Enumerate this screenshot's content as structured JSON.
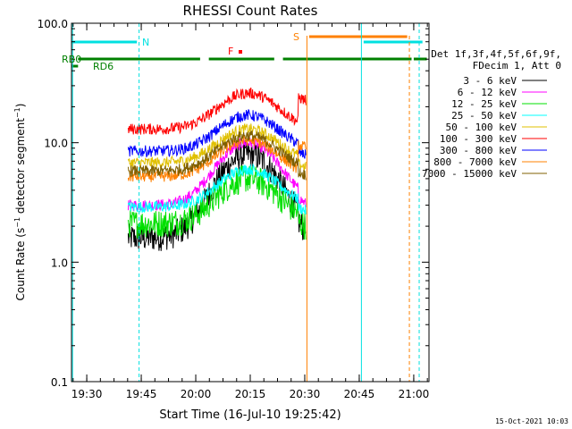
{
  "chart_data": {
    "type": "line",
    "title": "RHESSI Count Rates",
    "xlabel": "Start Time (16-Jul-10 19:25:42)",
    "ylabel_main": "Count Rate (s",
    "ylabel_sup": "−1",
    "ylabel_tail": " detector segment",
    "ylabel_sup2": "−1",
    "ylabel_end": ")",
    "y_scale": "log",
    "ylim": [
      0.1,
      100
    ],
    "xlim_minutes": [
      19.43,
      21.07
    ],
    "x_ticks": [
      {
        "label": "19:30",
        "value": 19.5
      },
      {
        "label": "19:45",
        "value": 19.75
      },
      {
        "label": "20:00",
        "value": 20.0
      },
      {
        "label": "20:15",
        "value": 20.25
      },
      {
        "label": "20:30",
        "value": 20.5
      },
      {
        "label": "20:45",
        "value": 20.75
      },
      {
        "label": "21:00",
        "value": 21.0
      }
    ],
    "y_ticks": [
      {
        "label": "100.0",
        "value": 100
      },
      {
        "label": "10.0",
        "value": 10
      },
      {
        "label": "1.0",
        "value": 1
      },
      {
        "label": "0.1",
        "value": 0.1
      }
    ],
    "legend_header": [
      "Det 1f,3f,4f,5f,6f,9f,",
      "FDecim 1, Att 0"
    ],
    "legend_position": "right",
    "series": [
      {
        "name": "3 - 6 keV",
        "color": "#000000",
        "base": 1.6,
        "peak": 8.0
      },
      {
        "name": "6 - 12 keV",
        "color": "#ff00ff",
        "base": 3.0,
        "peak": 10.0
      },
      {
        "name": "12 - 25 keV",
        "color": "#00e000",
        "base": 2.1,
        "peak": 5.0
      },
      {
        "name": "25 - 50 keV",
        "color": "#00ffff",
        "base": 2.9,
        "peak": 6.0
      },
      {
        "name": "50 - 100 keV",
        "color": "#e0c000",
        "base": 6.8,
        "peak": 13.0
      },
      {
        "name": "100 - 300 keV",
        "color": "#ff0000",
        "base": 13.0,
        "peak": 26.0
      },
      {
        "name": "300 - 800 keV",
        "color": "#0000ff",
        "base": 8.5,
        "peak": 17.0
      },
      {
        "name": "800 - 7000 keV",
        "color": "#ff8000",
        "base": 5.2,
        "peak": 10.5
      },
      {
        "name": "7000 - 15000 keV",
        "color": "#806000",
        "base": 5.8,
        "peak": 11.5
      }
    ],
    "annotations": [
      {
        "label": "N",
        "color": "#00e0e0"
      },
      {
        "label": "F",
        "color": "#ff0000"
      },
      {
        "label": "S",
        "color": "#ff8000"
      },
      {
        "label": "RB0",
        "color": "#008000"
      },
      {
        "label": "RD6",
        "color": "#008000"
      }
    ],
    "timestamp": "15-Oct-2021 10:03"
  }
}
